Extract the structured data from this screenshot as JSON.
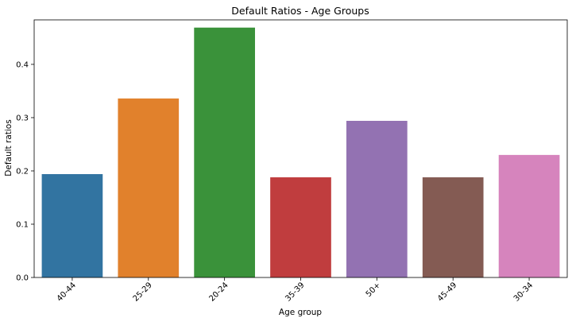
{
  "chart_data": {
    "type": "bar",
    "title": "Default Ratios - Age Groups",
    "xlabel": "Age group",
    "ylabel": "Default ratios",
    "categories": [
      "40-44",
      "25-29",
      "20-24",
      "35-39",
      "50+",
      "45-49",
      "30-34"
    ],
    "values": [
      0.194,
      0.336,
      0.469,
      0.188,
      0.294,
      0.188,
      0.23
    ],
    "colors": [
      "#3274a1",
      "#e1812c",
      "#3a923a",
      "#c03d3e",
      "#9372b2",
      "#845b53",
      "#d684bd"
    ],
    "ylim": [
      0,
      0.4835
    ],
    "yticks": [
      0.0,
      0.1,
      0.2,
      0.3,
      0.4
    ],
    "ytick_labels": [
      "0.0",
      "0.1",
      "0.2",
      "0.3",
      "0.4"
    ],
    "grid": false,
    "legend": "none"
  }
}
